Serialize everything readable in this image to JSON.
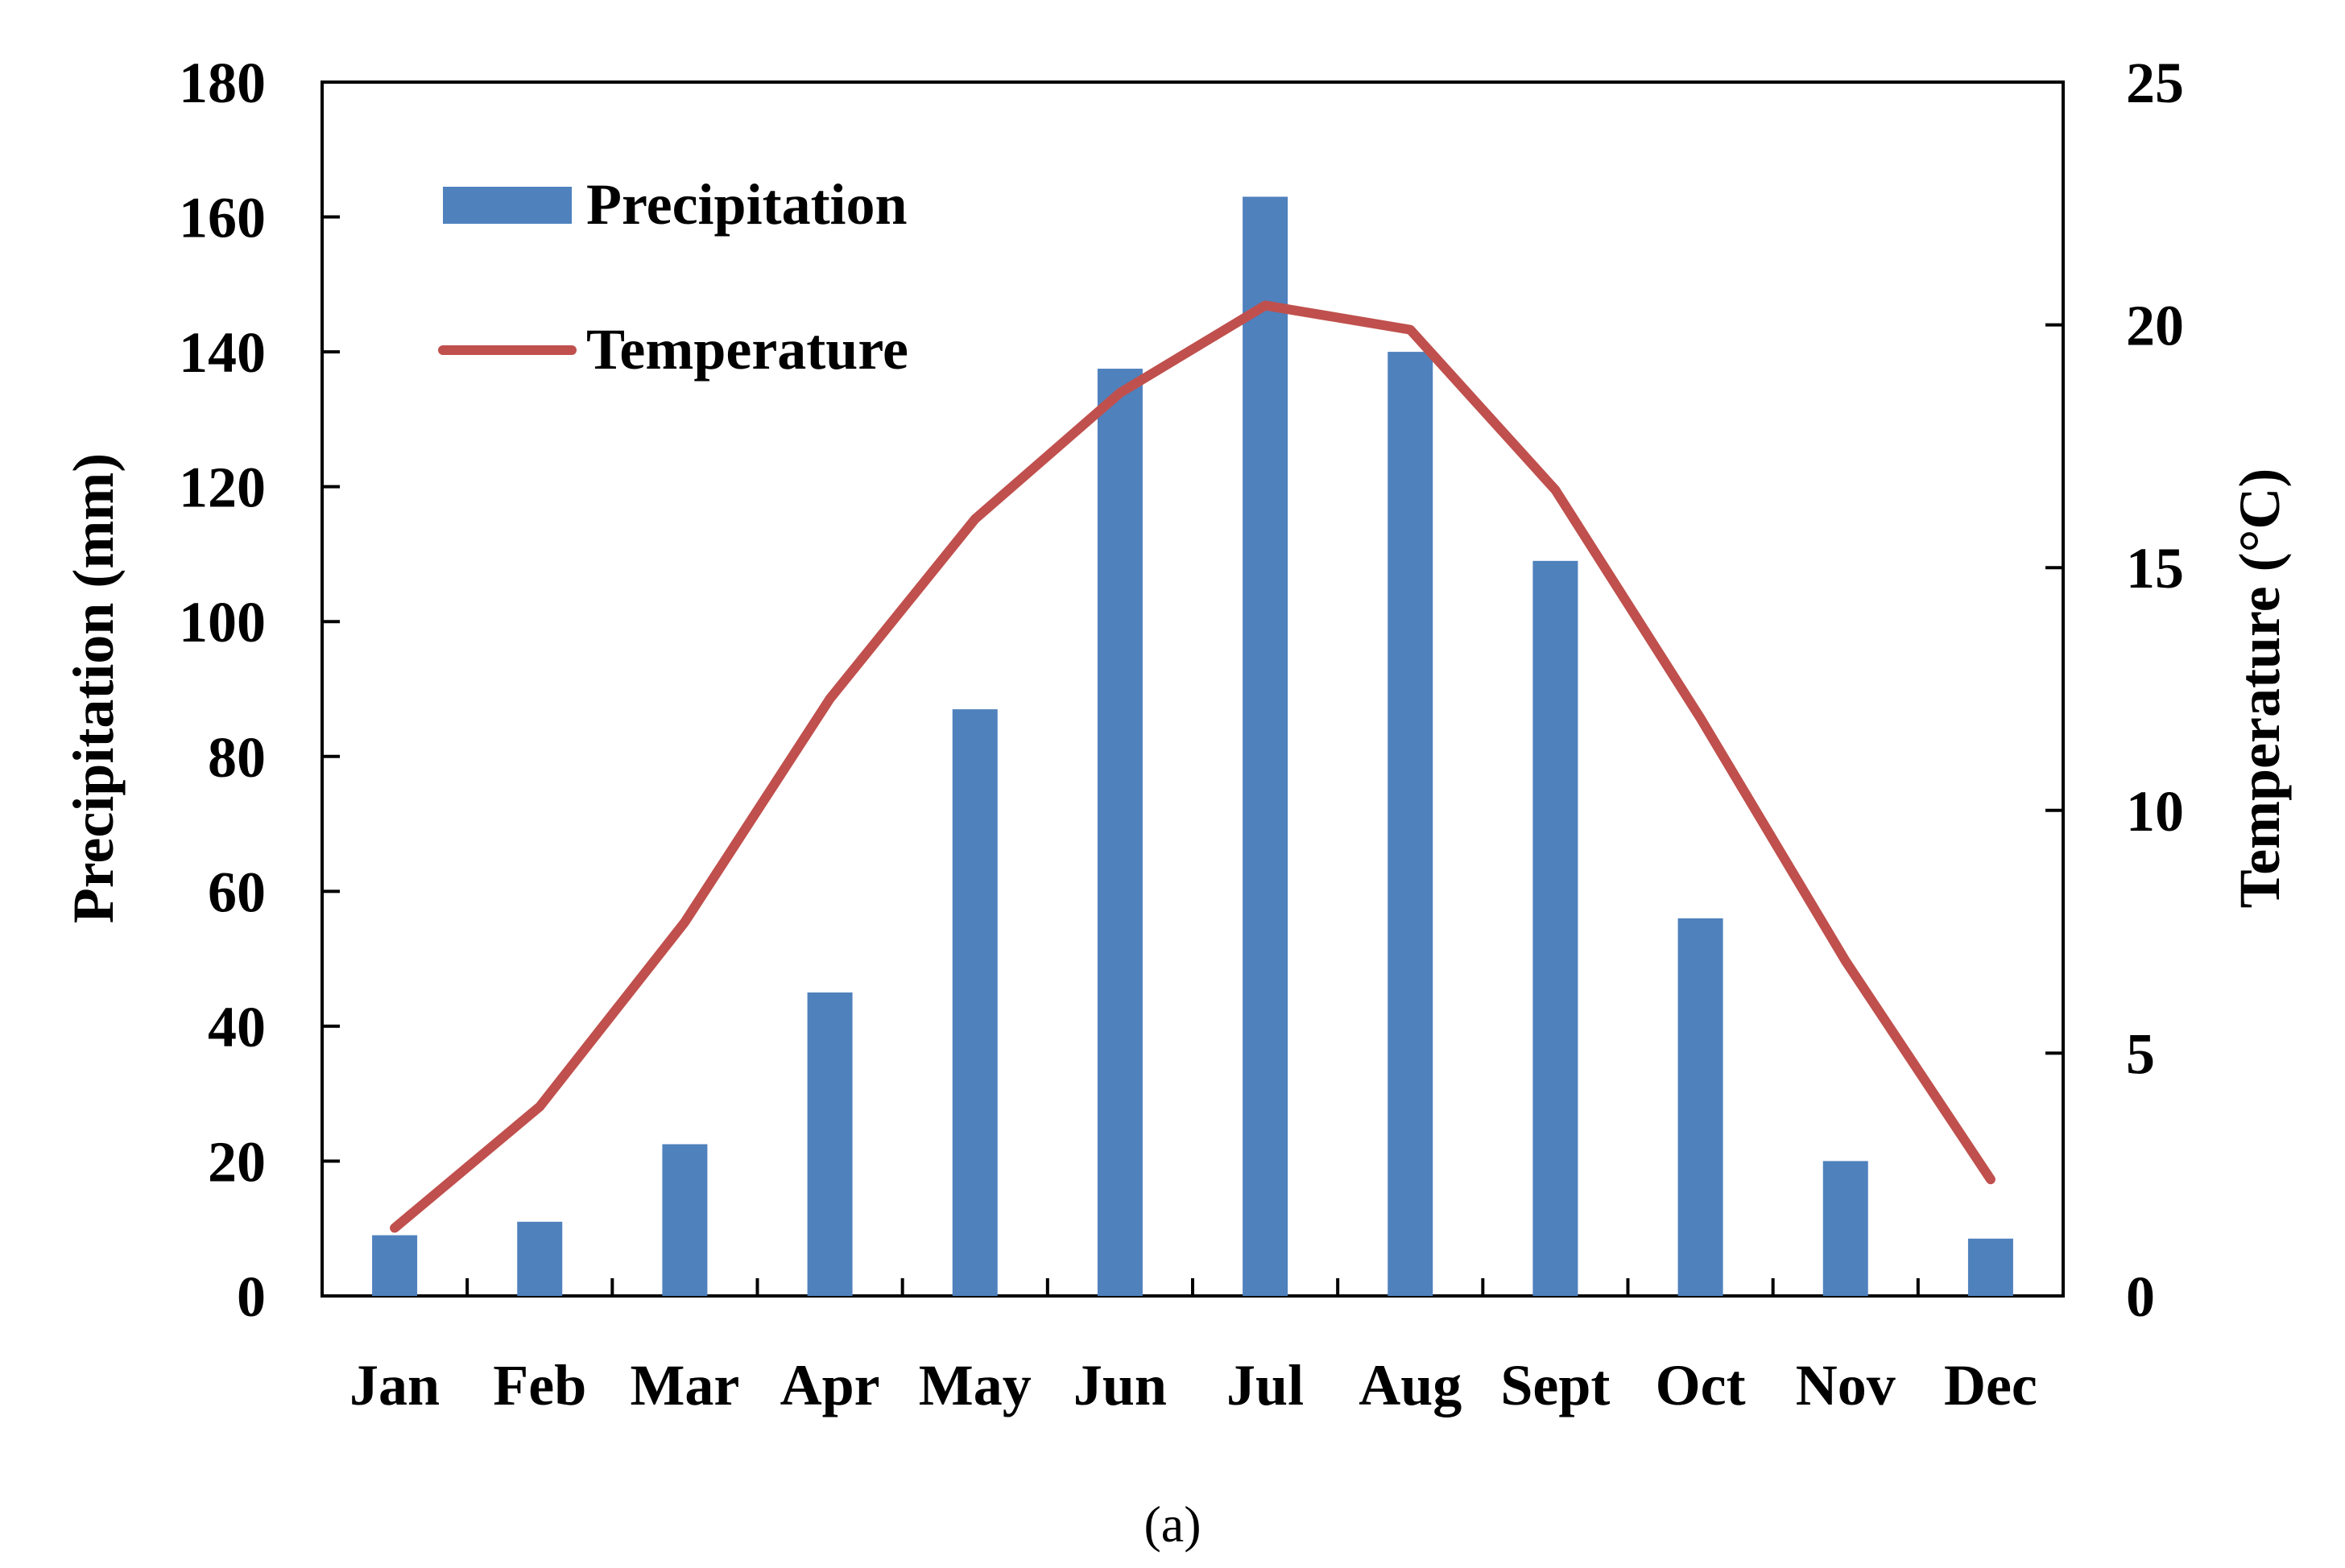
{
  "chart_data": {
    "type": "bar+line",
    "categories": [
      "Jan",
      "Feb",
      "Mar",
      "Apr",
      "May",
      "Jun",
      "Jul",
      "Aug",
      "Sept",
      "Oct",
      "Nov",
      "Dec"
    ],
    "series": [
      {
        "name": "Precipitation",
        "type": "bar",
        "axis": "left",
        "color": "#4F81BD",
        "values": [
          9,
          11,
          22.5,
          45,
          87,
          137.5,
          163,
          140,
          109,
          56,
          20,
          8.5
        ]
      },
      {
        "name": "Temperature",
        "type": "line",
        "axis": "right",
        "color": "#C0504D",
        "values": [
          1.4,
          3.9,
          7.7,
          12.3,
          16.0,
          18.6,
          20.4,
          19.9,
          16.6,
          11.9,
          6.9,
          2.4
        ]
      }
    ],
    "ylabel": "Precipitation (mm)",
    "y2label": "Temperature (°C)",
    "xlabel": "",
    "ylim": [
      0,
      180
    ],
    "y2lim": [
      0,
      25
    ],
    "yticks": [
      "0",
      "20",
      "40",
      "60",
      "80",
      "100",
      "120",
      "140",
      "160",
      "180"
    ],
    "y2ticks": [
      "0",
      "5",
      "10",
      "15",
      "20",
      "25"
    ],
    "legend": {
      "placement": "top-left",
      "items": [
        "Precipitation",
        "Temperature"
      ]
    },
    "grid": false,
    "panel_label": "(a)"
  }
}
